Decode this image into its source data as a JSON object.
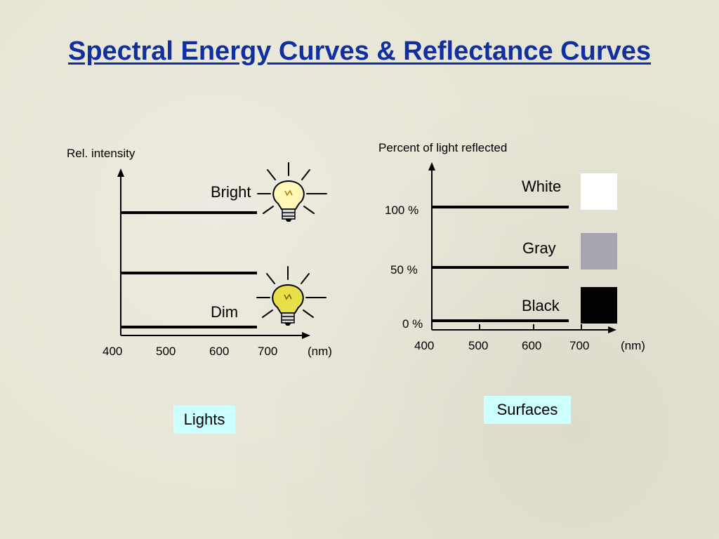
{
  "title": "Spectral Energy Curves & Reflectance Curves",
  "lights": {
    "y_axis_label": "Rel. intensity",
    "x_ticks": [
      "400",
      "500",
      "600",
      "700"
    ],
    "x_unit": "(nm)",
    "bright_label": "Bright",
    "dim_label": "Dim",
    "caption": "Lights",
    "bulb_icon": "light-bulb-icon"
  },
  "surfaces": {
    "y_axis_label": "Percent of light reflected",
    "y_ticks": [
      "100 %",
      "50 %",
      "0 %"
    ],
    "x_ticks": [
      "400",
      "500",
      "600",
      "700"
    ],
    "x_unit": "(nm)",
    "white_label": "White",
    "gray_label": "Gray",
    "black_label": "Black",
    "caption": "Surfaces",
    "swatch_colors": {
      "white": "#ffffff",
      "gray": "#a6a6ae",
      "black": "#000000"
    }
  },
  "colors": {
    "title": "#1030a0",
    "caption_bg": "#ccffff"
  }
}
